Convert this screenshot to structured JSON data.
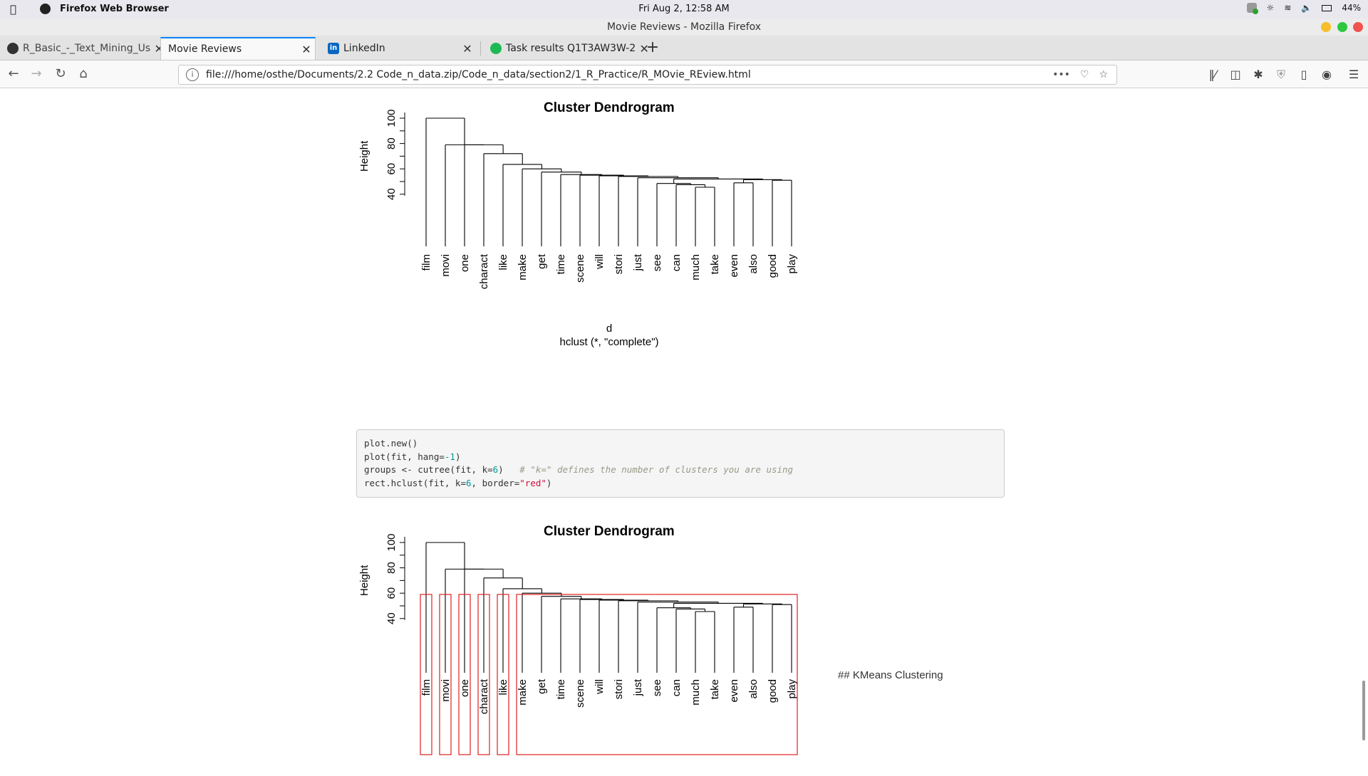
{
  "system": {
    "app_name": "Firefox Web Browser",
    "clock": "Fri Aug  2, 12:58 AM",
    "battery": "44%"
  },
  "window": {
    "title": "Movie Reviews - Mozilla Firefox"
  },
  "tabs": [
    {
      "label": "R_Basic_-_Text_Mining_Us",
      "icon": "github-icon",
      "active": false
    },
    {
      "label": "Movie Reviews",
      "icon": "",
      "active": true
    },
    {
      "label": "LinkedIn",
      "icon": "linkedin-icon",
      "active": false
    },
    {
      "label": "Task results Q1T3AW3W-2",
      "icon": "task-icon",
      "active": false
    }
  ],
  "nav": {
    "url": "file:///home/osthe/Documents/2.2 Code_n_data.zip/Code_n_data/section2/1_R_Practice/R_MOvie_REview.html"
  },
  "chart_data": [
    {
      "type": "dendrogram",
      "title": "Cluster Dendrogram",
      "ylabel": "Height",
      "xlabel": "d",
      "sub": "hclust (*, \"complete\")",
      "yticks": [
        40,
        60,
        80,
        100
      ],
      "leaves": [
        "film",
        "movi",
        "one",
        "charact",
        "like",
        "make",
        "get",
        "time",
        "scene",
        "will",
        "stori",
        "just",
        "see",
        "can",
        "much",
        "take",
        "even",
        "also",
        "good",
        "play"
      ],
      "merges": [
        {
          "a": "much",
          "b": "take",
          "height": 45.5
        },
        {
          "a": "can",
          "b": "(much,take)",
          "height": 47.5
        },
        {
          "a": "see",
          "b": "(can,much,take)",
          "height": 48.5
        },
        {
          "a": "even",
          "b": "also",
          "height": 49
        },
        {
          "a": "good",
          "b": "play",
          "height": 51
        },
        {
          "a": "(even,also)",
          "b": "(good,play)",
          "height": 51.5
        },
        {
          "a": "(see..take)",
          "b": "(even..play)",
          "height": 52
        },
        {
          "a": "just",
          "b": "(see..play)",
          "height": 53
        },
        {
          "a": "stori",
          "b": "(just..play)",
          "height": 54
        },
        {
          "a": "will",
          "b": "(stori..play)",
          "height": 54.5
        },
        {
          "a": "scene",
          "b": "(will..play)",
          "height": 55
        },
        {
          "a": "time",
          "b": "(scene..play)",
          "height": 55.5
        },
        {
          "a": "get",
          "b": "(time..play)",
          "height": 57.5
        },
        {
          "a": "make",
          "b": "(get..play)",
          "height": 60
        },
        {
          "a": "like",
          "b": "(make..play)",
          "height": 63.5
        },
        {
          "a": "charact",
          "b": "(like..play)",
          "height": 72
        },
        {
          "a": "one",
          "b": "(charact..play)",
          "height": 79
        },
        {
          "a": "movi",
          "b": "(one..play)",
          "height": 79
        },
        {
          "a": "film",
          "b": "(movi..play)",
          "height": 100
        }
      ]
    },
    {
      "type": "dendrogram",
      "title": "Cluster Dendrogram",
      "ylabel": "Height",
      "hang": -1,
      "yticks": [
        40,
        60,
        80,
        100
      ],
      "clusters_k": 6,
      "rect_border": "red",
      "clusters": [
        [
          "film"
        ],
        [
          "movi"
        ],
        [
          "one"
        ],
        [
          "charact"
        ],
        [
          "like"
        ],
        [
          "make",
          "get",
          "time",
          "scene",
          "will",
          "stori",
          "just",
          "see",
          "can",
          "much",
          "take",
          "even",
          "also",
          "good",
          "play"
        ]
      ]
    }
  ],
  "code": {
    "line1": "plot.new()",
    "line2a": "plot(fit, hang=",
    "line2n": "-1",
    "line2b": ")",
    "line3a": "groups <- cutree(fit, k=",
    "line3n": "6",
    "line3b": ")   ",
    "line3c": "# \"k=\" defines the number of clusters you are using",
    "line4a": "rect.hclust(fit, k=",
    "line4n": "6",
    "line4b": ", border=",
    "line4s": "\"red\"",
    "line4c": ")"
  },
  "kmeans_heading": "## KMeans Clustering"
}
